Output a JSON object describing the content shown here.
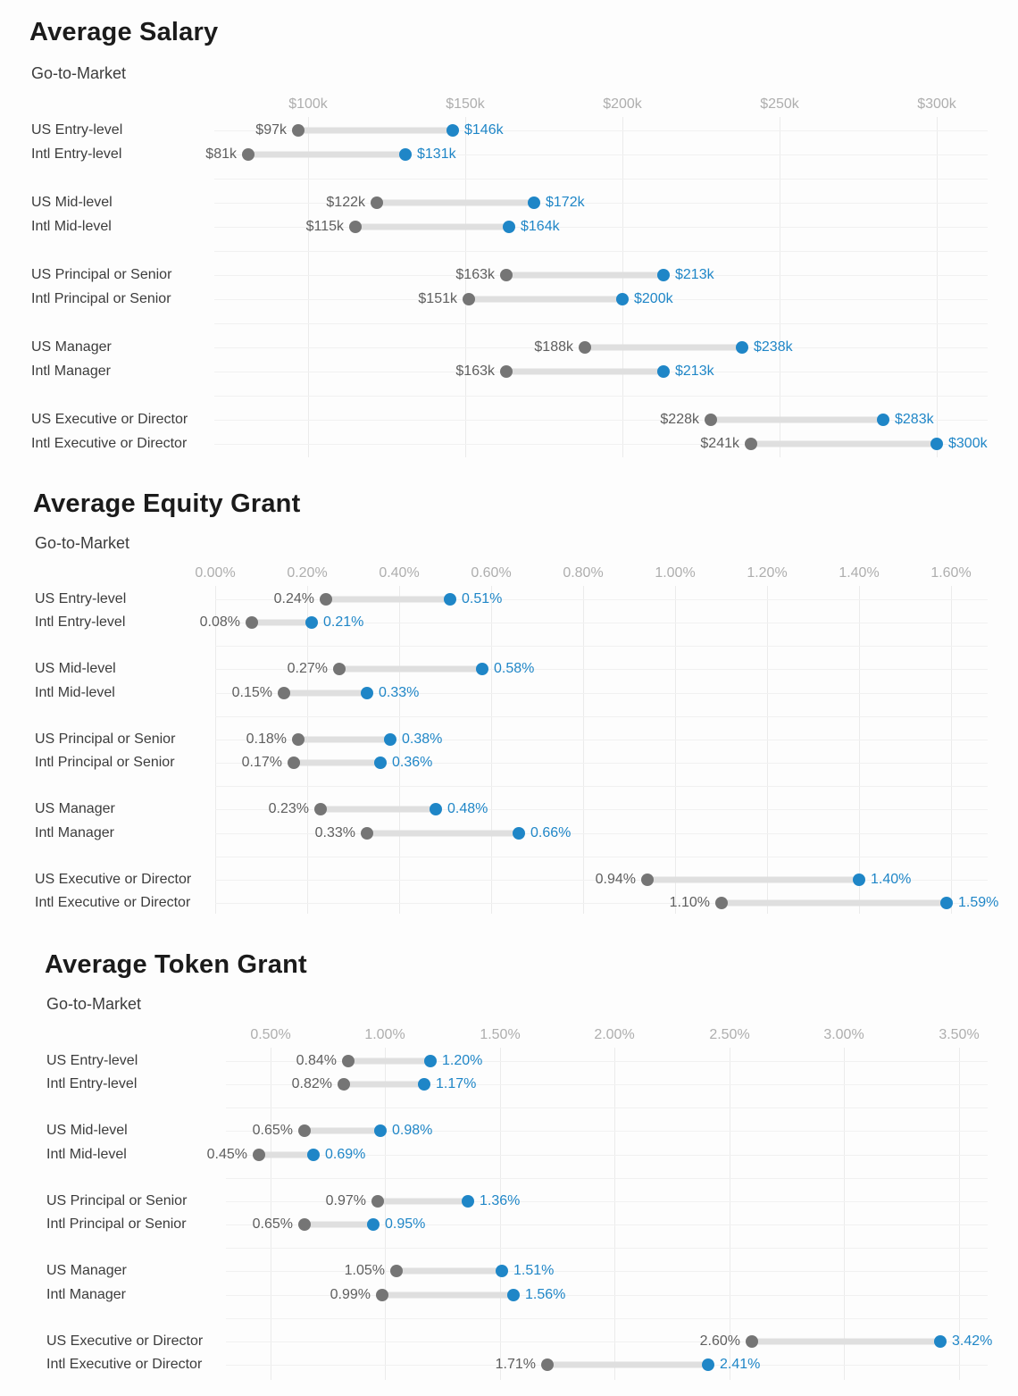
{
  "colors": {
    "start_dot": "#757575",
    "end_dot": "#1f86c7",
    "bar": "#dfdfdf",
    "start_value_text": "#5e5e5e",
    "end_value_text": "#1f86c7"
  },
  "chart_data": [
    {
      "type": "dumbbell",
      "title": "Average Salary",
      "subtitle": "Go-to-Market",
      "xlabel": "",
      "ylabel": "",
      "legend": "none",
      "grid": true,
      "axis_ticks": [
        {
          "value": 100,
          "label": "$100k"
        },
        {
          "value": 150,
          "label": "$150k"
        },
        {
          "value": 200,
          "label": "$200k"
        },
        {
          "value": 250,
          "label": "$250k"
        },
        {
          "value": 300,
          "label": "$300k"
        }
      ],
      "rows": [
        {
          "label": "US Entry-level",
          "start": 97,
          "end": 146,
          "start_label": "$97k",
          "end_label": "$146k"
        },
        {
          "label": "Intl Entry-level",
          "start": 81,
          "end": 131,
          "start_label": "$81k",
          "end_label": "$131k"
        },
        {
          "label": "US Mid-level",
          "start": 122,
          "end": 172,
          "start_label": "$122k",
          "end_label": "$172k"
        },
        {
          "label": "Intl Mid-level",
          "start": 115,
          "end": 164,
          "start_label": "$115k",
          "end_label": "$164k"
        },
        {
          "label": "US Principal or Senior",
          "start": 163,
          "end": 213,
          "start_label": "$163k",
          "end_label": "$213k"
        },
        {
          "label": "Intl Principal or Senior",
          "start": 151,
          "end": 200,
          "start_label": "$151k",
          "end_label": "$200k"
        },
        {
          "label": "US Manager",
          "start": 188,
          "end": 238,
          "start_label": "$188k",
          "end_label": "$238k"
        },
        {
          "label": "Intl Manager",
          "start": 163,
          "end": 213,
          "start_label": "$163k",
          "end_label": "$213k"
        },
        {
          "label": "US Executive or Director",
          "start": 228,
          "end": 283,
          "start_label": "$228k",
          "end_label": "$283k"
        },
        {
          "label": "Intl Executive or Director",
          "start": 241,
          "end": 300,
          "start_label": "$241k",
          "end_label": "$300k"
        }
      ]
    },
    {
      "type": "dumbbell",
      "title": "Average Equity Grant",
      "subtitle": "Go-to-Market",
      "xlabel": "",
      "ylabel": "",
      "legend": "none",
      "grid": true,
      "axis_ticks": [
        {
          "value": 0.0,
          "label": "0.00%"
        },
        {
          "value": 0.2,
          "label": "0.20%"
        },
        {
          "value": 0.4,
          "label": "0.40%"
        },
        {
          "value": 0.6,
          "label": "0.60%"
        },
        {
          "value": 0.8,
          "label": "0.80%"
        },
        {
          "value": 1.0,
          "label": "1.00%"
        },
        {
          "value": 1.2,
          "label": "1.20%"
        },
        {
          "value": 1.4,
          "label": "1.40%"
        },
        {
          "value": 1.6,
          "label": "1.60%"
        }
      ],
      "rows": [
        {
          "label": "US Entry-level",
          "start": 0.24,
          "end": 0.51,
          "start_label": "0.24%",
          "end_label": "0.51%"
        },
        {
          "label": "Intl Entry-level",
          "start": 0.08,
          "end": 0.21,
          "start_label": "0.08%",
          "end_label": "0.21%"
        },
        {
          "label": "US Mid-level",
          "start": 0.27,
          "end": 0.58,
          "start_label": "0.27%",
          "end_label": "0.58%"
        },
        {
          "label": "Intl Mid-level",
          "start": 0.15,
          "end": 0.33,
          "start_label": "0.15%",
          "end_label": "0.33%"
        },
        {
          "label": "US Principal or Senior",
          "start": 0.18,
          "end": 0.38,
          "start_label": "0.18%",
          "end_label": "0.38%"
        },
        {
          "label": "Intl Principal or Senior",
          "start": 0.17,
          "end": 0.36,
          "start_label": "0.17%",
          "end_label": "0.36%"
        },
        {
          "label": "US Manager",
          "start": 0.23,
          "end": 0.48,
          "start_label": "0.23%",
          "end_label": "0.48%"
        },
        {
          "label": "Intl Manager",
          "start": 0.33,
          "end": 0.66,
          "start_label": "0.33%",
          "end_label": "0.66%"
        },
        {
          "label": "US Executive or Director",
          "start": 0.94,
          "end": 1.4,
          "start_label": "0.94%",
          "end_label": "1.40%"
        },
        {
          "label": "Intl Executive or Director",
          "start": 1.1,
          "end": 1.59,
          "start_label": "1.10%",
          "end_label": "1.59%"
        }
      ]
    },
    {
      "type": "dumbbell",
      "title": "Average Token Grant",
      "subtitle": "Go-to-Market",
      "xlabel": "",
      "ylabel": "",
      "legend": "none",
      "grid": true,
      "axis_ticks": [
        {
          "value": 0.5,
          "label": "0.50%"
        },
        {
          "value": 1.0,
          "label": "1.00%"
        },
        {
          "value": 1.5,
          "label": "1.50%"
        },
        {
          "value": 2.0,
          "label": "2.00%"
        },
        {
          "value": 2.5,
          "label": "2.50%"
        },
        {
          "value": 3.0,
          "label": "3.00%"
        },
        {
          "value": 3.5,
          "label": "3.50%"
        }
      ],
      "rows": [
        {
          "label": "US Entry-level",
          "start": 0.84,
          "end": 1.2,
          "start_label": "0.84%",
          "end_label": "1.20%"
        },
        {
          "label": "Intl Entry-level",
          "start": 0.82,
          "end": 1.17,
          "start_label": "0.82%",
          "end_label": "1.17%"
        },
        {
          "label": "US Mid-level",
          "start": 0.65,
          "end": 0.98,
          "start_label": "0.65%",
          "end_label": "0.98%"
        },
        {
          "label": "Intl Mid-level",
          "start": 0.45,
          "end": 0.69,
          "start_label": "0.45%",
          "end_label": "0.69%"
        },
        {
          "label": "US Principal or Senior",
          "start": 0.97,
          "end": 1.36,
          "start_label": "0.97%",
          "end_label": "1.36%"
        },
        {
          "label": "Intl Principal or Senior",
          "start": 0.65,
          "end": 0.95,
          "start_label": "0.65%",
          "end_label": "0.95%"
        },
        {
          "label": "US Manager",
          "start": 1.05,
          "end": 1.51,
          "start_label": "1.05%",
          "end_label": "1.51%"
        },
        {
          "label": "Intl Manager",
          "start": 0.99,
          "end": 1.56,
          "start_label": "0.99%",
          "end_label": "1.56%"
        },
        {
          "label": "US Executive or Director",
          "start": 2.6,
          "end": 3.42,
          "start_label": "2.60%",
          "end_label": "3.42%"
        },
        {
          "label": "Intl Executive or Director",
          "start": 1.71,
          "end": 2.41,
          "start_label": "1.71%",
          "end_label": "2.41%"
        }
      ]
    }
  ]
}
